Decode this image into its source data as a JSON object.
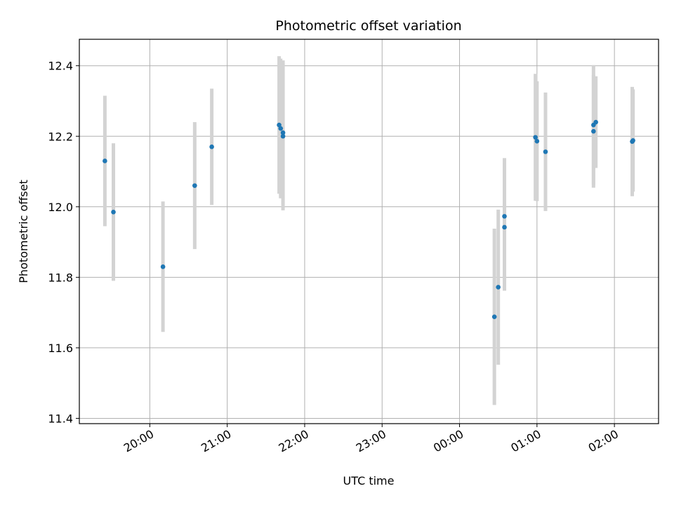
{
  "chart_data": {
    "type": "scatter",
    "title": "Photometric offset variation",
    "xlabel": "UTC time",
    "ylabel": "Photometric offset",
    "grid": true,
    "x_ticks": [
      "20:00",
      "21:00",
      "22:00",
      "23:00",
      "00:00",
      "01:00",
      "02:00"
    ],
    "x_tick_hours": [
      20,
      21,
      22,
      23,
      24,
      25,
      26
    ],
    "xlim_hours": [
      19.09,
      26.57
    ],
    "y_ticks": [
      "11.4",
      "11.6",
      "11.8",
      "12.0",
      "12.2",
      "12.4"
    ],
    "y_tick_values": [
      11.4,
      11.6,
      11.8,
      12.0,
      12.2,
      12.4
    ],
    "ylim": [
      11.385,
      12.475
    ],
    "colors": {
      "marker": "#1f77b4",
      "errorbar": "#d3d3d3",
      "grid": "#b0b0b0"
    },
    "points": [
      {
        "time": "19:25",
        "hour": 19.42,
        "y": 12.13,
        "yerr": 0.185
      },
      {
        "time": "19:32",
        "hour": 19.53,
        "y": 11.985,
        "yerr": 0.195
      },
      {
        "time": "20:10",
        "hour": 20.17,
        "y": 11.83,
        "yerr": 0.185
      },
      {
        "time": "20:35",
        "hour": 20.58,
        "y": 12.06,
        "yerr": 0.18
      },
      {
        "time": "20:48",
        "hour": 20.8,
        "y": 12.17,
        "yerr": 0.165
      },
      {
        "time": "21:40",
        "hour": 21.67,
        "y": 12.232,
        "yerr": 0.195
      },
      {
        "time": "21:41",
        "hour": 21.69,
        "y": 12.222,
        "yerr": 0.198
      },
      {
        "time": "21:43",
        "hour": 21.72,
        "y": 12.21,
        "yerr": 0.205
      },
      {
        "time": "21:43",
        "hour": 21.72,
        "y": 12.2,
        "yerr": 0.21
      },
      {
        "time": "00:27",
        "hour": 24.45,
        "y": 11.688,
        "yerr": 0.25
      },
      {
        "time": "00:30",
        "hour": 24.5,
        "y": 11.772,
        "yerr": 0.22
      },
      {
        "time": "00:35",
        "hour": 24.58,
        "y": 11.973,
        "yerr": 0.165
      },
      {
        "time": "00:35",
        "hour": 24.58,
        "y": 11.942,
        "yerr": 0.18
      },
      {
        "time": "00:59",
        "hour": 24.98,
        "y": 12.197,
        "yerr": 0.18
      },
      {
        "time": "01:00",
        "hour": 25.0,
        "y": 12.186,
        "yerr": 0.17
      },
      {
        "time": "01:07",
        "hour": 25.11,
        "y": 12.156,
        "yerr": 0.168
      },
      {
        "time": "01:44",
        "hour": 25.73,
        "y": 12.232,
        "yerr": 0.17
      },
      {
        "time": "01:44",
        "hour": 25.73,
        "y": 12.214,
        "yerr": 0.16
      },
      {
        "time": "01:46",
        "hour": 25.76,
        "y": 12.24,
        "yerr": 0.13
      },
      {
        "time": "02:14",
        "hour": 26.23,
        "y": 12.185,
        "yerr": 0.155
      },
      {
        "time": "02:14",
        "hour": 26.24,
        "y": 12.188,
        "yerr": 0.145
      }
    ]
  }
}
